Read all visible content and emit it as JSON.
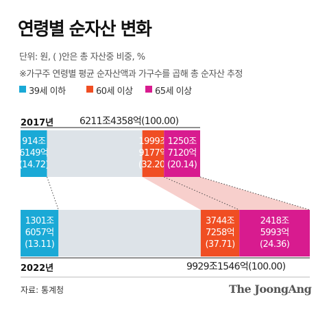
{
  "title": "연령별 순자산 변화",
  "subtitle_unit": "단위: 원, ( )안은 총 자산중 비중, %",
  "subtitle_note": "※가구주 연령별 평균 순자산액과 가구수를 곱해 총 순자산 추정",
  "source": "자료: 통계청",
  "logo": "The JoongAng",
  "colors": {
    "age_39_under": "#1aa9d6",
    "age_60_over": "#f04e23",
    "age_65_over": "#d81b8f",
    "rest": "#dde3e8",
    "connector": "#f6c7c3"
  },
  "chart_data": {
    "type": "bar",
    "orientation": "horizontal-stacked",
    "legend": [
      {
        "name": "39세 이하",
        "color": "#1aa9d6"
      },
      {
        "name": "60세 이상",
        "color": "#f04e23"
      },
      {
        "name": "65세 이상",
        "color": "#d81b8f"
      }
    ],
    "years": [
      {
        "year": "2017년",
        "total_label": "6211조4358억(100.00)",
        "segments": [
          {
            "group": "39세 이하",
            "share": 14.72,
            "label": [
              "914조",
              "6149억",
              "(14.72)"
            ]
          },
          {
            "group": "rest",
            "share": 53.08
          },
          {
            "group": "60세 이상",
            "share": 12.06,
            "label": [
              "1999조",
              "9177억",
              "(32.20)"
            ]
          },
          {
            "group": "65세 이상",
            "share": 20.14,
            "label": [
              "1250조",
              "7120억",
              "(20.14)"
            ]
          }
        ]
      },
      {
        "year": "2022년",
        "total_label": "9929조1546억(100.00)",
        "segments": [
          {
            "group": "39세 이하",
            "share": 13.11,
            "label": [
              "1301조",
              "6057억",
              "(13.11)"
            ]
          },
          {
            "group": "rest",
            "share": 49.18
          },
          {
            "group": "60세 이상",
            "share": 13.35,
            "label": [
              "3744조",
              "7258억",
              "(37.71)"
            ]
          },
          {
            "group": "65세 이상",
            "share": 24.36,
            "label": [
              "2418조",
              "5993억",
              "(24.36)"
            ]
          }
        ]
      }
    ]
  }
}
